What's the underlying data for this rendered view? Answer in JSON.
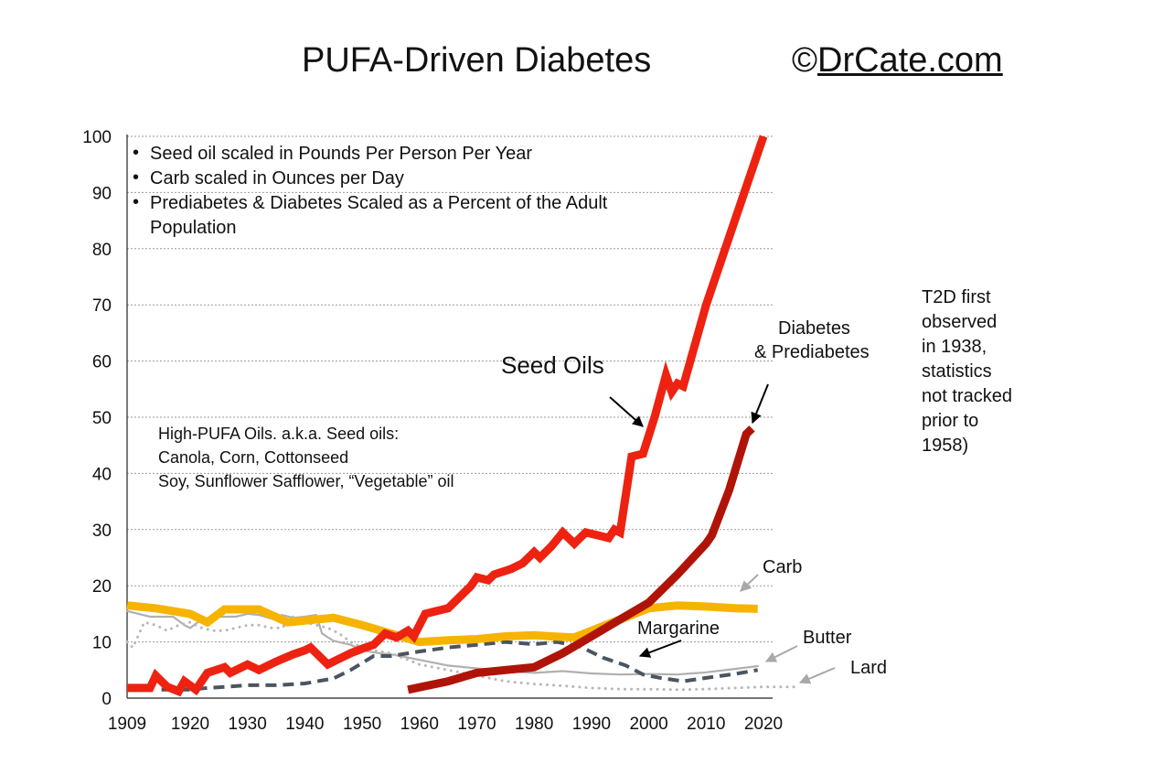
{
  "title": "PUFA-Driven Diabetes",
  "copyright_symbol": "©",
  "copyright_link": "DrCate.com",
  "notes": [
    "Seed oil scaled in Pounds Per Person Per Year",
    "Carb scaled in Ounces per Day",
    "Prediabetes & Diabetes Scaled as a Percent of the Adult",
    "Population"
  ],
  "oils_note": [
    "High-PUFA Oils. a.k.a. Seed oils:",
    "Canola, Corn, Cottonseed",
    "Soy, Sunflower Safflower, “Vegetable” oil"
  ],
  "t2d_note": [
    "T2D first",
    "observed",
    "in 1938,",
    "statistics",
    "not tracked",
    "prior to",
    "1958)"
  ],
  "labels": {
    "seed_oils": "Seed Oils",
    "diabetes": [
      "Diabetes",
      "& Prediabetes"
    ],
    "carb": "Carb",
    "margarine": "Margarine",
    "butter": "Butter",
    "lard": "Lard"
  },
  "colors": {
    "seed_oils": "#ee2211",
    "diabetes": "#b01408",
    "carb": "#f6b400",
    "margarine": "#4b5560",
    "butter": "#b0b0b0",
    "lard": "#b8b8b8",
    "grid": "#9a9a9a",
    "arrow_black": "#000000",
    "arrow_gray": "#a8a8a8"
  },
  "chart_data": {
    "type": "line",
    "xlim": [
      1909,
      2020
    ],
    "ylim": [
      0,
      100
    ],
    "x_ticks": [
      "1909",
      "1920",
      "1930",
      "1940",
      "1950",
      "1960",
      "1970",
      "1980",
      "1990",
      "2000",
      "2010",
      "2020"
    ],
    "y_ticks": [
      "0",
      "10",
      "20",
      "30",
      "40",
      "50",
      "60",
      "70",
      "80",
      "90",
      "100"
    ],
    "y_tick_values": [
      0,
      10,
      20,
      30,
      40,
      50,
      60,
      70,
      80,
      90,
      100
    ],
    "x_tick_values": [
      1909,
      1920,
      1930,
      1940,
      1950,
      1960,
      1970,
      1980,
      1990,
      2000,
      2010,
      2020
    ],
    "grid": "horizontal dotted",
    "series": [
      {
        "name": "Butter",
        "key": "butter",
        "style": "thin-solid",
        "points": [
          [
            1909,
            15.5
          ],
          [
            1911,
            15
          ],
          [
            1913,
            14.5
          ],
          [
            1915,
            14.5
          ],
          [
            1917,
            14.5
          ],
          [
            1919,
            13
          ],
          [
            1920,
            12.5
          ],
          [
            1922,
            14
          ],
          [
            1924,
            14.5
          ],
          [
            1926,
            14.5
          ],
          [
            1928,
            14.5
          ],
          [
            1930,
            15
          ],
          [
            1932,
            14.8
          ],
          [
            1934,
            14.2
          ],
          [
            1936,
            14.8
          ],
          [
            1938,
            14.3
          ],
          [
            1940,
            14.5
          ],
          [
            1942,
            14.8
          ],
          [
            1943,
            11.5
          ],
          [
            1945,
            10.2
          ],
          [
            1948,
            9.5
          ],
          [
            1950,
            8.5
          ],
          [
            1953,
            8
          ],
          [
            1955,
            7.8
          ],
          [
            1960,
            6.8
          ],
          [
            1965,
            5.8
          ],
          [
            1970,
            5.3
          ],
          [
            1975,
            4.8
          ],
          [
            1980,
            4.5
          ],
          [
            1985,
            4.8
          ],
          [
            1990,
            4.4
          ],
          [
            1995,
            4.2
          ],
          [
            2000,
            4.3
          ],
          [
            2005,
            4.2
          ],
          [
            2010,
            4.6
          ],
          [
            2015,
            5.2
          ],
          [
            2019,
            5.7
          ]
        ]
      },
      {
        "name": "Lard",
        "key": "lard",
        "style": "dotted",
        "points": [
          [
            1909,
            10
          ],
          [
            1910,
            9
          ],
          [
            1912,
            13.5
          ],
          [
            1914,
            13
          ],
          [
            1916,
            12
          ],
          [
            1918,
            13
          ],
          [
            1920,
            13.5
          ],
          [
            1922,
            12.5
          ],
          [
            1924,
            12
          ],
          [
            1926,
            12
          ],
          [
            1928,
            12.5
          ],
          [
            1930,
            13
          ],
          [
            1932,
            13
          ],
          [
            1934,
            12.5
          ],
          [
            1936,
            12.5
          ],
          [
            1938,
            14.5
          ],
          [
            1940,
            13.5
          ],
          [
            1942,
            13
          ],
          [
            1944,
            12.5
          ],
          [
            1946,
            11.5
          ],
          [
            1948,
            10
          ],
          [
            1950,
            9
          ],
          [
            1952,
            8.5
          ],
          [
            1955,
            8
          ],
          [
            1960,
            6
          ],
          [
            1965,
            5
          ],
          [
            1970,
            4
          ],
          [
            1975,
            3
          ],
          [
            1980,
            2.5
          ],
          [
            1985,
            2.2
          ],
          [
            1990,
            1.8
          ],
          [
            1995,
            1.6
          ],
          [
            2000,
            1.6
          ],
          [
            2005,
            1.5
          ],
          [
            2010,
            1.6
          ],
          [
            2015,
            1.8
          ],
          [
            2020,
            2
          ],
          [
            2026,
            2
          ]
        ]
      },
      {
        "name": "Margarine",
        "key": "margarine",
        "style": "dashed",
        "points": [
          [
            1915,
            1.5
          ],
          [
            1918,
            1.5
          ],
          [
            1920,
            1.5
          ],
          [
            1923,
            1.8
          ],
          [
            1926,
            2
          ],
          [
            1930,
            2.3
          ],
          [
            1935,
            2.3
          ],
          [
            1940,
            2.6
          ],
          [
            1945,
            3.5
          ],
          [
            1948,
            5
          ],
          [
            1952,
            7.5
          ],
          [
            1955,
            7.5
          ],
          [
            1960,
            8.3
          ],
          [
            1965,
            9
          ],
          [
            1970,
            9.5
          ],
          [
            1975,
            10
          ],
          [
            1980,
            9.6
          ],
          [
            1984,
            10
          ],
          [
            1988,
            9.2
          ],
          [
            1992,
            7.2
          ],
          [
            1996,
            5.8
          ],
          [
            1999,
            4.2
          ],
          [
            2002,
            3.6
          ],
          [
            2006,
            3.0
          ],
          [
            2010,
            3.6
          ],
          [
            2015,
            4.3
          ],
          [
            2019,
            5
          ]
        ]
      },
      {
        "name": "Carb",
        "key": "carb",
        "style": "thick",
        "points": [
          [
            1909,
            16.5
          ],
          [
            1914,
            16
          ],
          [
            1920,
            15
          ],
          [
            1923,
            13.5
          ],
          [
            1926,
            15.8
          ],
          [
            1932,
            15.8
          ],
          [
            1937,
            13.5
          ],
          [
            1940,
            13.8
          ],
          [
            1945,
            14.3
          ],
          [
            1950,
            13
          ],
          [
            1955,
            11.5
          ],
          [
            1960,
            10
          ],
          [
            1965,
            10.3
          ],
          [
            1970,
            10.5
          ],
          [
            1975,
            11
          ],
          [
            1980,
            11.2
          ],
          [
            1983,
            11
          ],
          [
            1987,
            10.8
          ],
          [
            1990,
            12
          ],
          [
            1995,
            14
          ],
          [
            2000,
            16
          ],
          [
            2005,
            16.5
          ],
          [
            2010,
            16.3
          ],
          [
            2015,
            16
          ],
          [
            2019,
            15.9
          ]
        ]
      },
      {
        "name": "Seed Oils",
        "key": "seed_oils",
        "style": "thicker",
        "points": [
          [
            1909,
            1.8
          ],
          [
            1913,
            1.8
          ],
          [
            1914,
            4
          ],
          [
            1916,
            2
          ],
          [
            1918,
            1.2
          ],
          [
            1919,
            3
          ],
          [
            1921,
            1.5
          ],
          [
            1923,
            4.5
          ],
          [
            1926,
            5.5
          ],
          [
            1927,
            4.5
          ],
          [
            1930,
            6
          ],
          [
            1932,
            5
          ],
          [
            1935,
            6.5
          ],
          [
            1938,
            7.8
          ],
          [
            1940,
            8.5
          ],
          [
            1941,
            9
          ],
          [
            1944,
            6
          ],
          [
            1946,
            7
          ],
          [
            1948,
            8
          ],
          [
            1950,
            8.8
          ],
          [
            1952,
            9.5
          ],
          [
            1954,
            11.5
          ],
          [
            1956,
            10.8
          ],
          [
            1958,
            12
          ],
          [
            1959,
            11
          ],
          [
            1961,
            15
          ],
          [
            1963,
            15.5
          ],
          [
            1965,
            16
          ],
          [
            1967,
            18
          ],
          [
            1969,
            20
          ],
          [
            1970,
            21.5
          ],
          [
            1972,
            21
          ],
          [
            1973,
            22
          ],
          [
            1976,
            23
          ],
          [
            1978,
            24
          ],
          [
            1980,
            26
          ],
          [
            1981,
            25
          ],
          [
            1983,
            27
          ],
          [
            1985,
            29.5
          ],
          [
            1987,
            27.5
          ],
          [
            1989,
            29.5
          ],
          [
            1991,
            29
          ],
          [
            1993,
            28.5
          ],
          [
            1994,
            30
          ],
          [
            1995,
            29.5
          ],
          [
            1997,
            43
          ],
          [
            1999,
            43.5
          ],
          [
            2001,
            50
          ],
          [
            2003,
            57.5
          ],
          [
            2004,
            54.5
          ],
          [
            2005,
            56
          ],
          [
            2006,
            55.5
          ],
          [
            2010,
            70
          ],
          [
            2015,
            85
          ],
          [
            2020,
            100
          ]
        ]
      },
      {
        "name": "Diabetes & Prediabetes",
        "key": "diabetes",
        "style": "thick",
        "points": [
          [
            1958,
            1.5
          ],
          [
            1965,
            3
          ],
          [
            1970,
            4.5
          ],
          [
            1975,
            5
          ],
          [
            1980,
            5.5
          ],
          [
            1985,
            8
          ],
          [
            1990,
            11
          ],
          [
            1995,
            14
          ],
          [
            2000,
            17
          ],
          [
            2005,
            22
          ],
          [
            2010,
            27.5
          ],
          [
            2011,
            29
          ],
          [
            2014,
            37
          ],
          [
            2017,
            47
          ],
          [
            2018,
            48
          ]
        ]
      }
    ]
  }
}
